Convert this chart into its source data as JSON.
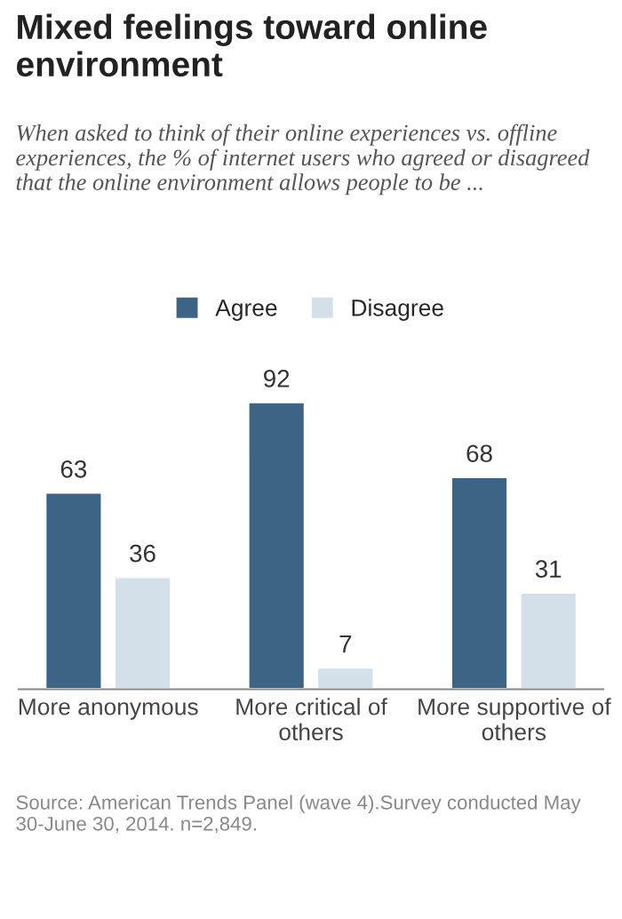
{
  "chart_data": {
    "type": "bar",
    "title": "Mixed feelings toward online environment",
    "subtitle": "When asked to think of their online experiences vs. offline experiences, the % of internet users who agreed or disagreed that the online environment allows people to be ...",
    "categories": [
      "More anonymous",
      "More critical of\nothers",
      "More supportive of\nothers"
    ],
    "series": [
      {
        "name": "Agree",
        "color": "#3d6485",
        "values": [
          63,
          92,
          68
        ]
      },
      {
        "name": "Disagree",
        "color": "#d3e0ea",
        "values": [
          36,
          7,
          31
        ]
      }
    ],
    "data_labels": true,
    "legend": "top",
    "annotations": [
      "Source: American Trends Panel (wave 4).Survey conducted May 30-June 30, 2014. n=2,849."
    ]
  }
}
